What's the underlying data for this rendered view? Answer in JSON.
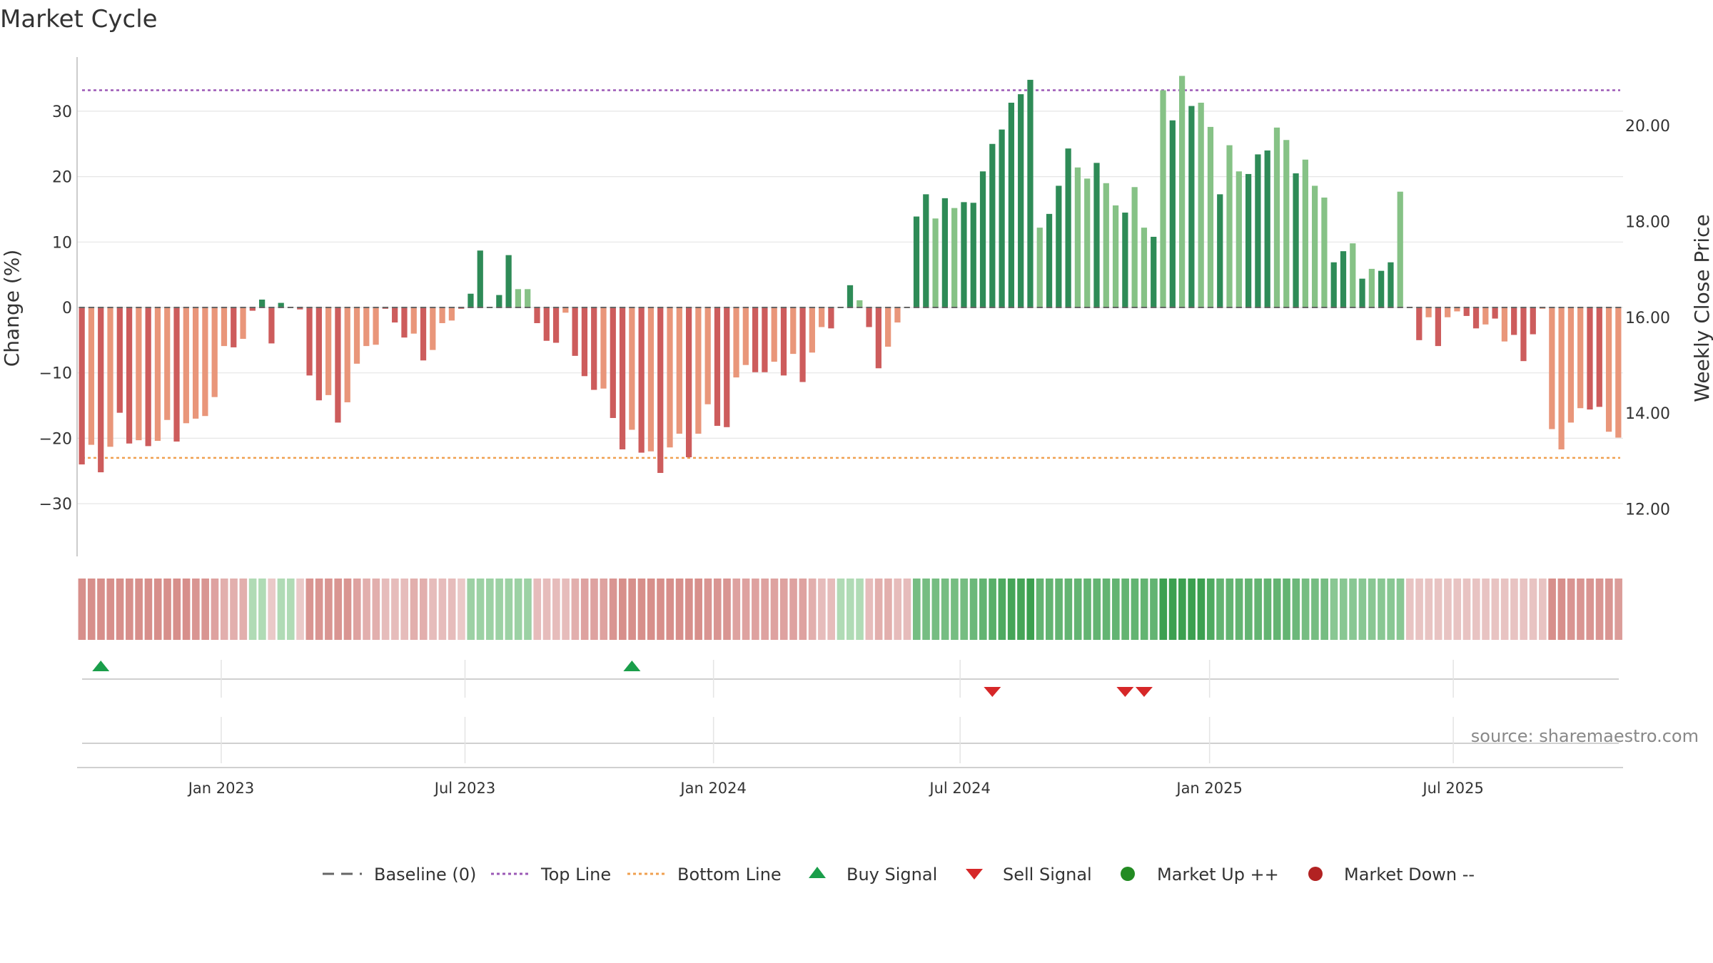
{
  "chart_data": {
    "type": "bar",
    "title": "Market Cycle",
    "ylabel_left": "Change (%)",
    "ylabel_right": "Weekly Close Price",
    "y_left_ticks": [
      "30",
      "20",
      "10",
      "0",
      "−10",
      "−20",
      "−30"
    ],
    "y_left_tick_values": [
      30,
      20,
      10,
      0,
      -10,
      -20,
      -30
    ],
    "y_left_range": [
      -38,
      38
    ],
    "y_right_ticks": [
      "20.00",
      "18.00",
      "16.00",
      "14.00",
      "12.00"
    ],
    "y_right_tick_values": [
      20,
      18,
      16,
      14,
      12
    ],
    "x_ticks": [
      "Jan 2023",
      "Jul 2023",
      "Jan 2024",
      "Jul 2024",
      "Jan 2025",
      "Jul 2025"
    ],
    "x_tick_weeks": [
      14.7,
      40.4,
      66.6,
      92.6,
      118.9,
      144.6
    ],
    "top_line": 33.2,
    "bottom_line": -23,
    "grid": true,
    "colors": {
      "strong_up": "#2e8b57",
      "up": "#86c286",
      "strong_down": "#cd5c5c",
      "down": "#e9967a",
      "top_line": "#9b59b6",
      "bottom_line": "#f0a050",
      "buy": "#1a9e4a",
      "sell": "#d62728",
      "market_up": "#228b22",
      "market_down": "#b22222",
      "baseline": "#666666"
    },
    "weekly_change": [
      -24,
      -21,
      -25.2,
      -21.3,
      -16.1,
      -20.8,
      -20.3,
      -21.2,
      -20.4,
      -17.2,
      -20.5,
      -17.7,
      -17,
      -16.6,
      -13.7,
      -5.9,
      -6.1,
      -4.8,
      -0.5,
      1.2,
      -5.5,
      0.7,
      0,
      -0.3,
      -10.4,
      -14.2,
      -13.4,
      -17.6,
      -14.5,
      -8.6,
      -5.9,
      -5.7,
      -0.2,
      -2.3,
      -4.6,
      -4,
      -8.1,
      -6.5,
      -2.4,
      -2,
      -0.2,
      2.1,
      8.7,
      0.1,
      1.9,
      8,
      2.8,
      2.8,
      -2.4,
      -5.1,
      -5.4,
      -0.8,
      -7.4,
      -10.5,
      -12.6,
      -12.4,
      -16.9,
      -21.7,
      -18.7,
      -22.2,
      -22,
      -25.3,
      -21.4,
      -19.3,
      -22.9,
      -19.3,
      -14.8,
      -18.1,
      -18.3,
      -10.7,
      -8.8,
      -9.9,
      -9.9,
      -8.3,
      -10.4,
      -7.1,
      -11.4,
      -6.9,
      -3,
      -3.2,
      0.1,
      3.4,
      1.1,
      -3,
      -9.3,
      -6,
      -2.3,
      0,
      13.9,
      17.3,
      13.6,
      16.7,
      15.2,
      16.1,
      16,
      20.8,
      25,
      27.2,
      31.3,
      32.6,
      34.8,
      12.2,
      14.3,
      18.6,
      24.3,
      21.4,
      19.7,
      22.1,
      19,
      15.6,
      14.5,
      18.4,
      12.2,
      10.8,
      33.2,
      28.6,
      35.4,
      30.8,
      31.3,
      27.6,
      17.3,
      24.8,
      20.8,
      20.4,
      23.4,
      24,
      27.5,
      25.6,
      20.5,
      22.6,
      18.6,
      16.8,
      6.9,
      8.6,
      9.8,
      4.4,
      5.9,
      5.6,
      6.9,
      17.7,
      0,
      -5,
      -1.5,
      -5.9,
      -1.5,
      -0.6,
      -1.3,
      -3.2,
      -2.6,
      -1.7,
      -5.2,
      -4.2,
      -8.2,
      -4.1,
      -0.2,
      -18.6,
      -21.7,
      -17.6,
      -15.4,
      -15.6,
      -15.2,
      -19,
      -19.9
    ],
    "bar_strength": [
      "S",
      "W",
      "S",
      "W",
      "S",
      "S",
      "W",
      "S",
      "W",
      "W",
      "S",
      "W",
      "W",
      "W",
      "W",
      "W",
      "S",
      "W",
      "S",
      "S",
      "S",
      "S",
      "S",
      "S",
      "S",
      "S",
      "W",
      "S",
      "W",
      "W",
      "W",
      "W",
      "S",
      "S",
      "S",
      "W",
      "S",
      "W",
      "W",
      "W",
      "S",
      "S",
      "S",
      "S",
      "S",
      "S",
      "W",
      "W",
      "S",
      "S",
      "S",
      "W",
      "S",
      "S",
      "S",
      "W",
      "S",
      "S",
      "W",
      "S",
      "W",
      "S",
      "W",
      "W",
      "S",
      "W",
      "W",
      "S",
      "S",
      "W",
      "W",
      "S",
      "S",
      "W",
      "S",
      "W",
      "S",
      "W",
      "W",
      "S",
      "S",
      "S",
      "W",
      "S",
      "S",
      "W",
      "W",
      "S",
      "S",
      "S",
      "W",
      "S",
      "W",
      "S",
      "S",
      "S",
      "S",
      "S",
      "S",
      "S",
      "S",
      "W",
      "S",
      "S",
      "S",
      "W",
      "W",
      "S",
      "W",
      "W",
      "S",
      "W",
      "W",
      "S",
      "W",
      "S",
      "W",
      "S",
      "W",
      "W",
      "S",
      "W",
      "W",
      "S",
      "S",
      "S",
      "W",
      "W",
      "S",
      "W",
      "W",
      "W",
      "S",
      "S",
      "W",
      "S",
      "W",
      "S",
      "S",
      "W",
      "S",
      "S",
      "W",
      "S",
      "W",
      "W",
      "S",
      "S",
      "W",
      "S",
      "W",
      "S",
      "S",
      "S",
      "W",
      "W",
      "W",
      "W",
      "W",
      "S",
      "S"
    ],
    "heat_levels": [
      0.55,
      0.55,
      0.55,
      0.55,
      0.55,
      0.55,
      0.55,
      0.55,
      0.55,
      0.55,
      0.55,
      0.55,
      0.5,
      0.5,
      0.4,
      0.3,
      0.3,
      0.3,
      -0.2,
      -0.2,
      0.1,
      -0.2,
      -0.2,
      0.1,
      0.5,
      0.5,
      0.5,
      0.5,
      0.5,
      0.4,
      0.3,
      0.3,
      0.2,
      0.2,
      0.2,
      0.3,
      0.3,
      0.2,
      0.2,
      0.2,
      0.1,
      -0.3,
      -0.3,
      -0.3,
      -0.3,
      -0.3,
      -0.3,
      -0.3,
      0.2,
      0.2,
      0.2,
      0.2,
      0.3,
      0.4,
      0.4,
      0.4,
      0.5,
      0.55,
      0.55,
      0.55,
      0.55,
      0.55,
      0.55,
      0.55,
      0.55,
      0.55,
      0.5,
      0.5,
      0.5,
      0.4,
      0.4,
      0.4,
      0.4,
      0.4,
      0.4,
      0.4,
      0.4,
      0.3,
      0.2,
      0.2,
      -0.2,
      -0.2,
      -0.2,
      0.2,
      0.3,
      0.3,
      0.2,
      0.2,
      -0.5,
      -0.5,
      -0.5,
      -0.5,
      -0.5,
      -0.5,
      -0.55,
      -0.6,
      -0.65,
      -0.7,
      -0.75,
      -0.75,
      -0.8,
      -0.6,
      -0.6,
      -0.6,
      -0.6,
      -0.6,
      -0.6,
      -0.6,
      -0.6,
      -0.6,
      -0.6,
      -0.6,
      -0.6,
      -0.6,
      -0.8,
      -0.8,
      -0.8,
      -0.8,
      -0.8,
      -0.7,
      -0.6,
      -0.6,
      -0.6,
      -0.6,
      -0.6,
      -0.6,
      -0.6,
      -0.6,
      -0.55,
      -0.5,
      -0.5,
      -0.5,
      -0.4,
      -0.4,
      -0.4,
      -0.4,
      -0.4,
      -0.4,
      -0.4,
      -0.4,
      0.15,
      0.15,
      0.15,
      0.15,
      0.15,
      0.15,
      0.15,
      0.15,
      0.15,
      0.15,
      0.15,
      0.15,
      0.15,
      0.15,
      0.15,
      0.55,
      0.55,
      0.5,
      0.5,
      0.5,
      0.5,
      0.5,
      0.45
    ],
    "buy_signal_weeks": [
      2,
      58
    ],
    "sell_signal_weeks": [
      96,
      110,
      112
    ],
    "source_text": "source: sharemaestro.com",
    "legend": [
      {
        "label": "Baseline (0)",
        "marker": "dashed-line"
      },
      {
        "label": "Top Line",
        "marker": "dotted-line-purple"
      },
      {
        "label": "Bottom Line",
        "marker": "dotted-line-orange"
      },
      {
        "label": "Buy Signal",
        "marker": "triangle-up-green"
      },
      {
        "label": "Sell Signal",
        "marker": "triangle-down-red"
      },
      {
        "label": "Market Up ++",
        "marker": "dot-green"
      },
      {
        "label": "Market Down --",
        "marker": "dot-red"
      }
    ]
  }
}
